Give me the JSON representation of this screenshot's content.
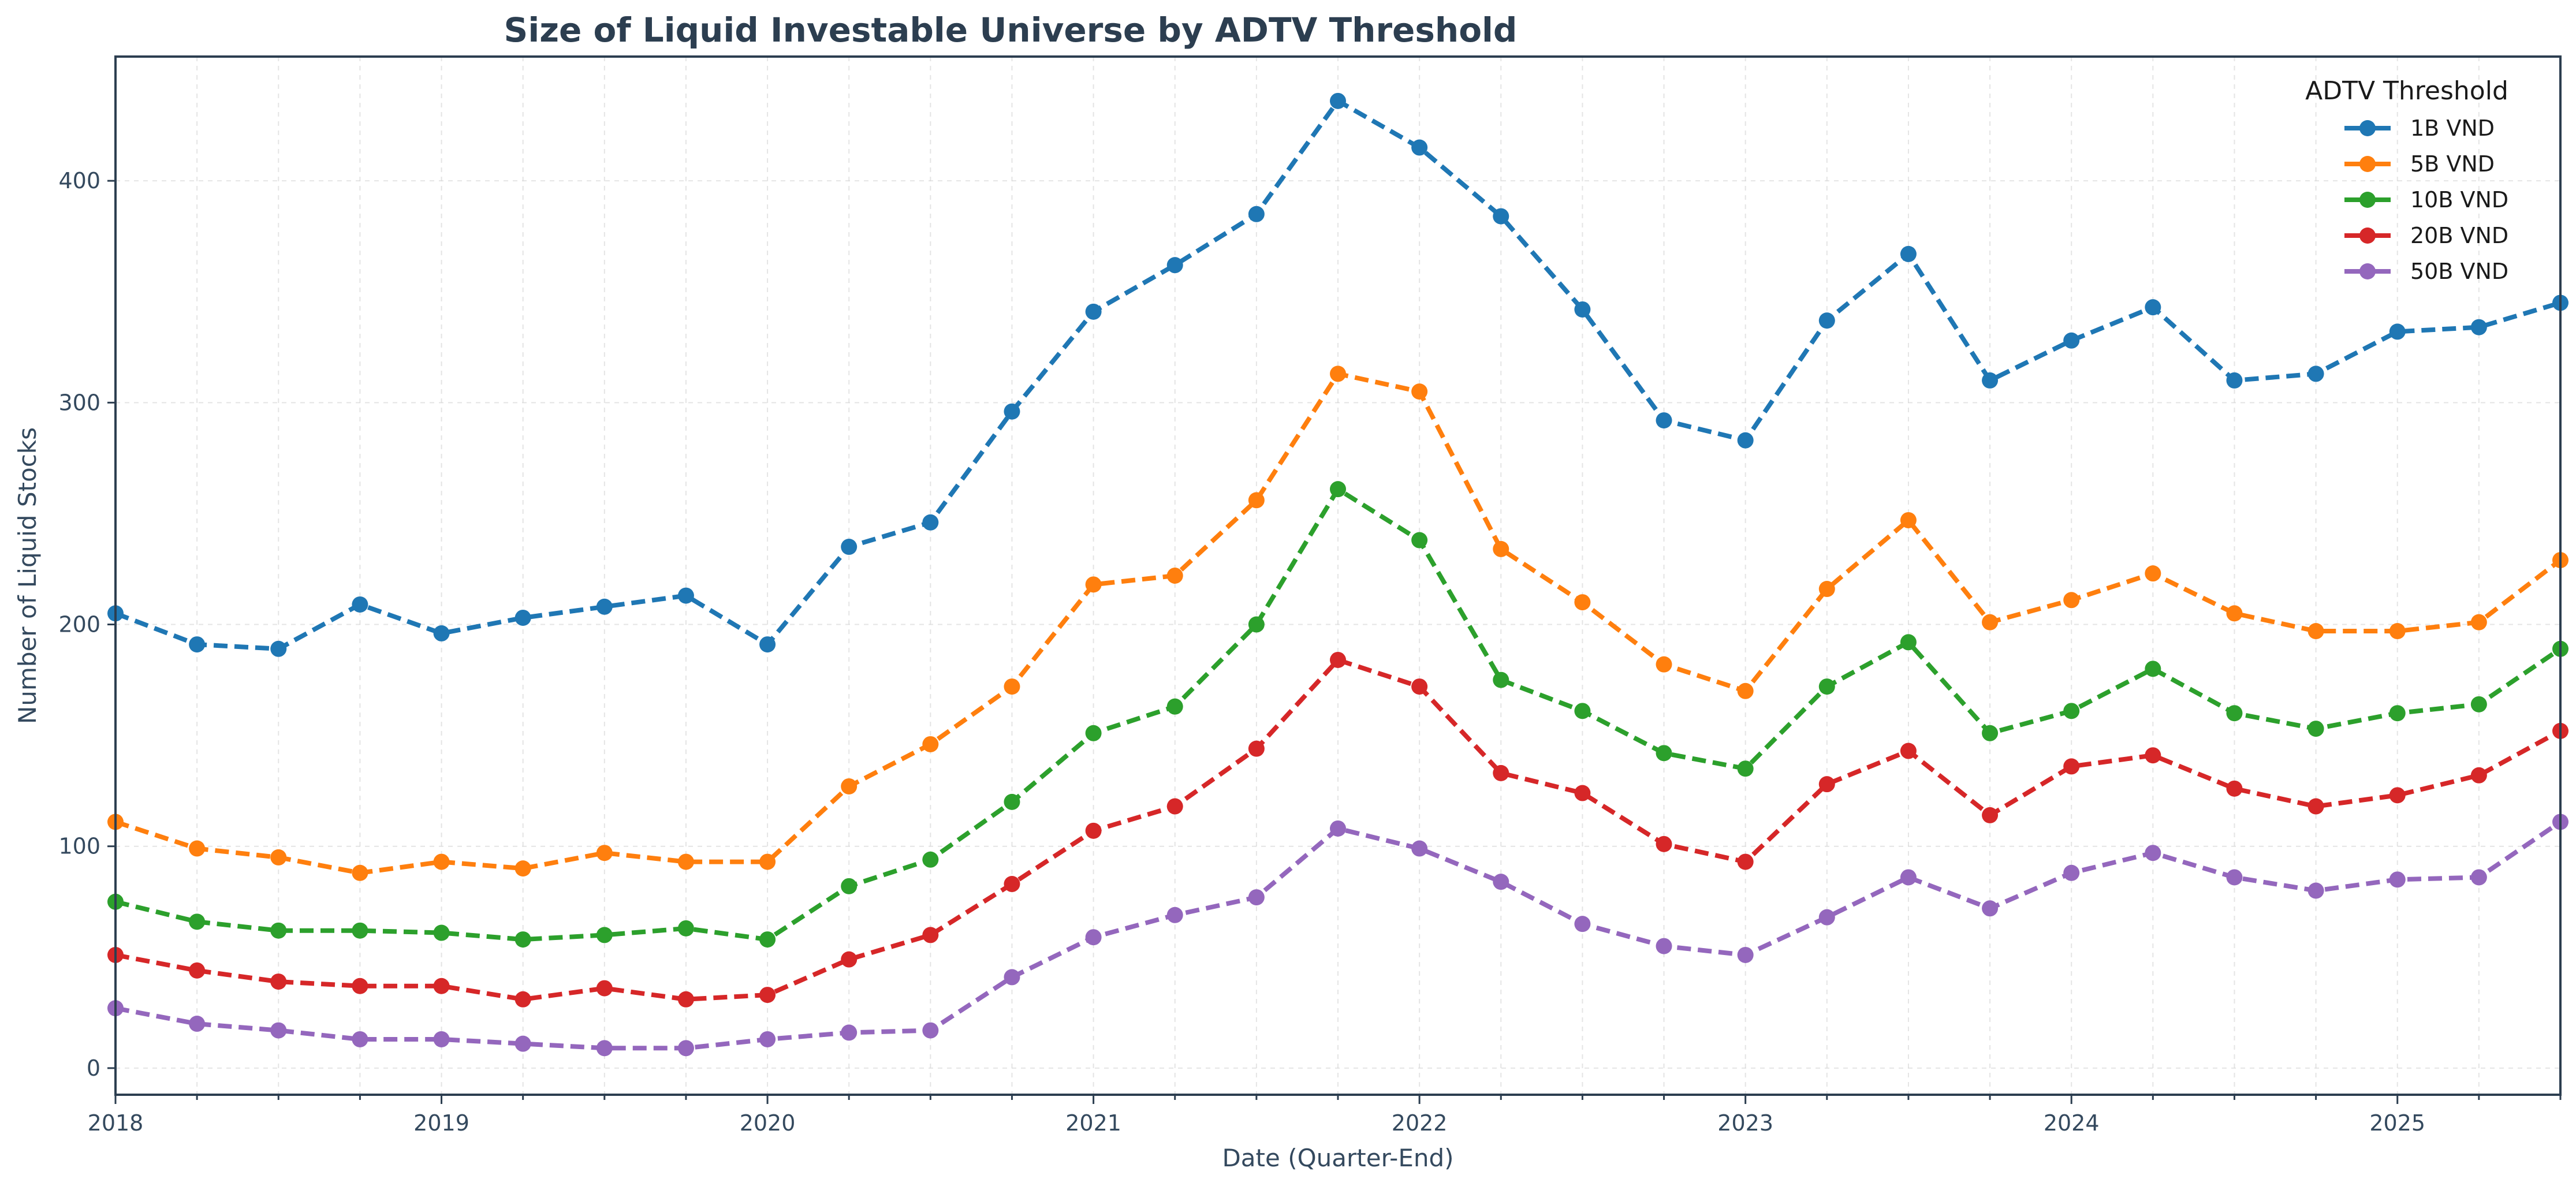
{
  "chart_data": {
    "type": "line",
    "title": "Size of Liquid Investable Universe by ADTV Threshold",
    "xlabel": "Date (Quarter-End)",
    "ylabel": "Number of Liquid Stocks",
    "ylim": [
      -12,
      456
    ],
    "yticks": [
      0,
      100,
      200,
      300,
      400
    ],
    "xticks": [
      "2018",
      "2019",
      "2020",
      "2021",
      "2022",
      "2023",
      "2024",
      "2025"
    ],
    "x_start": "2018",
    "x_end": "2025-Q3",
    "grid": true,
    "legend": {
      "title": "ADTV Threshold",
      "placement": "top-right"
    },
    "x": [
      "2018-Q1",
      "2018-Q2",
      "2018-Q3",
      "2018-Q4",
      "2019-Q1",
      "2019-Q2",
      "2019-Q3",
      "2019-Q4",
      "2020-Q1",
      "2020-Q2",
      "2020-Q3",
      "2020-Q4",
      "2021-Q1",
      "2021-Q2",
      "2021-Q3",
      "2021-Q4",
      "2022-Q1",
      "2022-Q2",
      "2022-Q3",
      "2022-Q4",
      "2023-Q1",
      "2023-Q2",
      "2023-Q3",
      "2023-Q4",
      "2024-Q1",
      "2024-Q2",
      "2024-Q3",
      "2024-Q4",
      "2025-Q1",
      "2025-Q2",
      "2025-Q3"
    ],
    "series": [
      {
        "name": "1B VND",
        "color": "#1f77b4",
        "values": [
          205,
          191,
          189,
          209,
          196,
          203,
          208,
          213,
          191,
          235,
          246,
          296,
          341,
          362,
          385,
          436,
          415,
          384,
          342,
          292,
          283,
          337,
          367,
          310,
          328,
          343,
          310,
          313,
          332,
          334,
          345
        ]
      },
      {
        "name": "5B VND",
        "color": "#ff7f0e",
        "values": [
          111,
          99,
          95,
          88,
          93,
          90,
          97,
          93,
          93,
          127,
          146,
          172,
          218,
          222,
          256,
          313,
          305,
          234,
          210,
          182,
          170,
          216,
          247,
          201,
          211,
          223,
          205,
          197,
          197,
          201,
          229
        ]
      },
      {
        "name": "10B VND",
        "color": "#2ca02c",
        "values": [
          75,
          66,
          62,
          62,
          61,
          58,
          60,
          63,
          58,
          82,
          94,
          120,
          151,
          163,
          200,
          261,
          238,
          175,
          161,
          142,
          135,
          172,
          192,
          151,
          161,
          180,
          160,
          153,
          160,
          164,
          189
        ]
      },
      {
        "name": "20B VND",
        "color": "#d62728",
        "values": [
          51,
          44,
          39,
          37,
          37,
          31,
          36,
          31,
          33,
          49,
          60,
          83,
          107,
          118,
          144,
          184,
          172,
          133,
          124,
          101,
          93,
          128,
          143,
          114,
          136,
          141,
          126,
          118,
          123,
          132,
          152
        ]
      },
      {
        "name": "50B VND",
        "color": "#9467bd",
        "values": [
          27,
          20,
          17,
          13,
          13,
          11,
          9,
          9,
          13,
          16,
          17,
          41,
          59,
          69,
          77,
          108,
          99,
          84,
          65,
          55,
          51,
          68,
          86,
          72,
          88,
          97,
          86,
          80,
          85,
          86,
          111
        ]
      }
    ]
  }
}
